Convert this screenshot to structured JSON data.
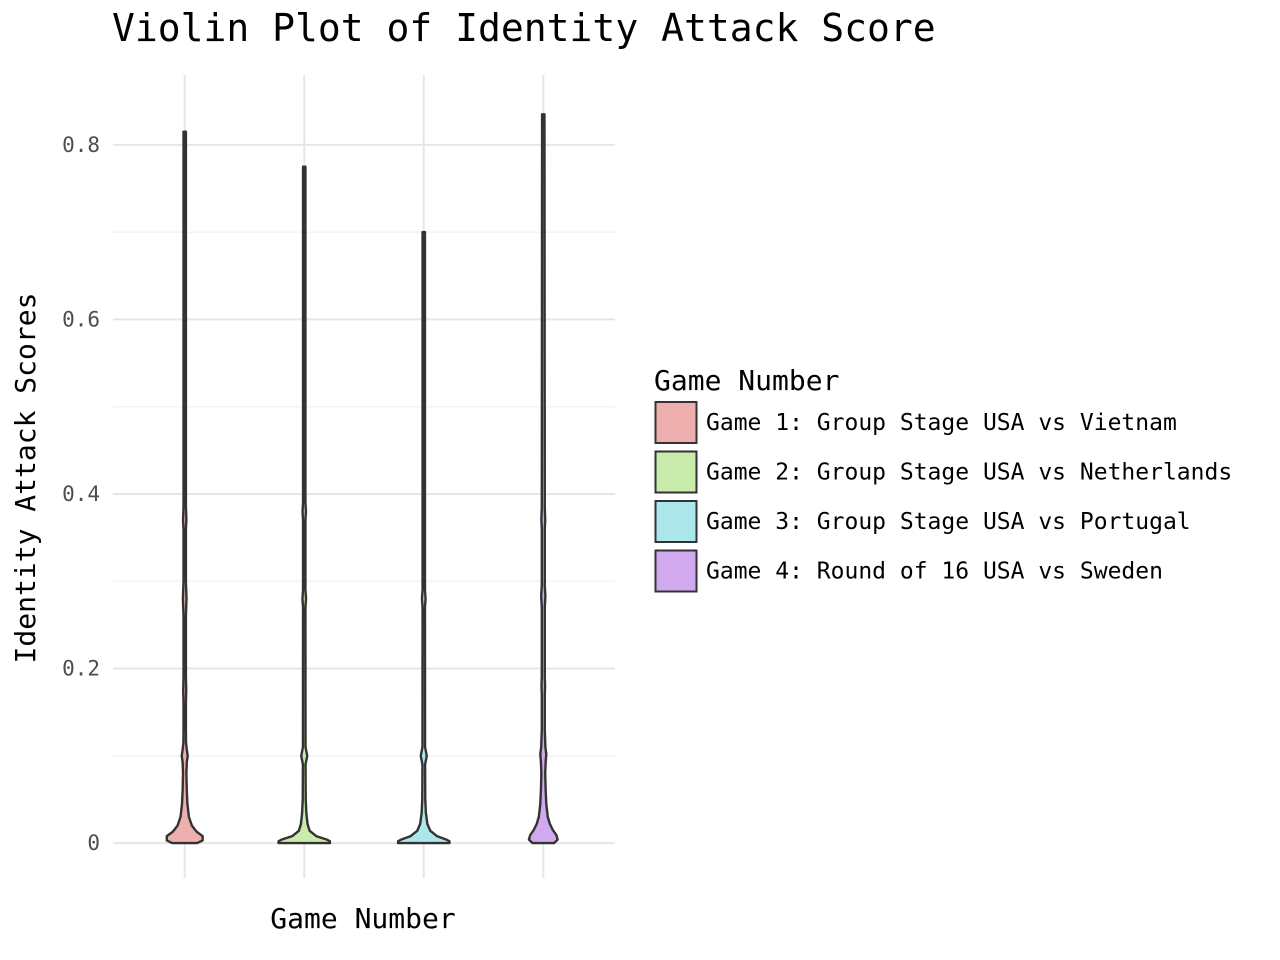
{
  "chart_data": {
    "type": "violin",
    "title": "Violin Plot of Identity Attack Score",
    "xlabel": "Game Number",
    "ylabel": "Identity Attack Scores",
    "ylim": [
      -0.04,
      0.88
    ],
    "y_ticks": [
      0,
      0.2,
      0.4,
      0.6,
      0.8
    ],
    "y_tick_labels": [
      "0",
      "0.2",
      "0.4",
      "0.6",
      "0.8"
    ],
    "x_tick_labels": [
      "",
      "",
      "",
      ""
    ],
    "grid": true,
    "legend": {
      "title": "Game Number",
      "position": "right"
    },
    "series": [
      {
        "name": "Game 1: Group Stage USA vs Vietnam",
        "color": "#eeb0ae",
        "max": 0.815,
        "profile": [
          [
            0,
            0.21
          ],
          [
            0.003,
            0.3
          ],
          [
            0.008,
            0.3
          ],
          [
            0.013,
            0.2
          ],
          [
            0.02,
            0.12
          ],
          [
            0.03,
            0.07
          ],
          [
            0.045,
            0.045
          ],
          [
            0.06,
            0.035
          ],
          [
            0.08,
            0.028
          ],
          [
            0.093,
            0.035
          ],
          [
            0.1,
            0.05
          ],
          [
            0.107,
            0.035
          ],
          [
            0.115,
            0.022
          ],
          [
            0.13,
            0.02
          ],
          [
            0.16,
            0.02
          ],
          [
            0.175,
            0.025
          ],
          [
            0.19,
            0.02
          ],
          [
            0.26,
            0.02
          ],
          [
            0.28,
            0.03
          ],
          [
            0.3,
            0.02
          ],
          [
            0.36,
            0.02
          ],
          [
            0.37,
            0.028
          ],
          [
            0.385,
            0.02
          ],
          [
            0.815,
            0.02
          ]
        ]
      },
      {
        "name": "Game 2: Group Stage USA vs Netherlands",
        "color": "#c9ebab",
        "max": 0.775,
        "profile": [
          [
            0,
            0.43
          ],
          [
            0.002,
            0.43
          ],
          [
            0.004,
            0.38
          ],
          [
            0.008,
            0.2
          ],
          [
            0.014,
            0.09
          ],
          [
            0.022,
            0.055
          ],
          [
            0.035,
            0.035
          ],
          [
            0.05,
            0.025
          ],
          [
            0.09,
            0.022
          ],
          [
            0.1,
            0.05
          ],
          [
            0.11,
            0.022
          ],
          [
            0.27,
            0.02
          ],
          [
            0.28,
            0.03
          ],
          [
            0.29,
            0.02
          ],
          [
            0.37,
            0.02
          ],
          [
            0.38,
            0.028
          ],
          [
            0.39,
            0.02
          ],
          [
            0.775,
            0.02
          ]
        ]
      },
      {
        "name": "Game 3: Group Stage USA vs Portugal",
        "color": "#ace8eb",
        "max": 0.7,
        "profile": [
          [
            0,
            0.43
          ],
          [
            0.002,
            0.43
          ],
          [
            0.004,
            0.38
          ],
          [
            0.008,
            0.22
          ],
          [
            0.014,
            0.11
          ],
          [
            0.022,
            0.06
          ],
          [
            0.035,
            0.035
          ],
          [
            0.05,
            0.025
          ],
          [
            0.09,
            0.022
          ],
          [
            0.1,
            0.05
          ],
          [
            0.11,
            0.022
          ],
          [
            0.27,
            0.02
          ],
          [
            0.28,
            0.03
          ],
          [
            0.29,
            0.02
          ],
          [
            0.7,
            0.02
          ]
        ]
      },
      {
        "name": "Game 4: Round of 16 USA vs Sweden",
        "color": "#d0a9ef",
        "max": 0.835,
        "profile": [
          [
            0,
            0.18
          ],
          [
            0.004,
            0.24
          ],
          [
            0.009,
            0.22
          ],
          [
            0.015,
            0.16
          ],
          [
            0.022,
            0.11
          ],
          [
            0.03,
            0.075
          ],
          [
            0.045,
            0.05
          ],
          [
            0.06,
            0.04
          ],
          [
            0.08,
            0.032
          ],
          [
            0.093,
            0.04
          ],
          [
            0.102,
            0.05
          ],
          [
            0.11,
            0.035
          ],
          [
            0.13,
            0.025
          ],
          [
            0.17,
            0.025
          ],
          [
            0.18,
            0.03
          ],
          [
            0.19,
            0.025
          ],
          [
            0.27,
            0.025
          ],
          [
            0.283,
            0.035
          ],
          [
            0.295,
            0.025
          ],
          [
            0.36,
            0.025
          ],
          [
            0.37,
            0.032
          ],
          [
            0.385,
            0.025
          ],
          [
            0.835,
            0.02
          ]
        ]
      }
    ]
  }
}
